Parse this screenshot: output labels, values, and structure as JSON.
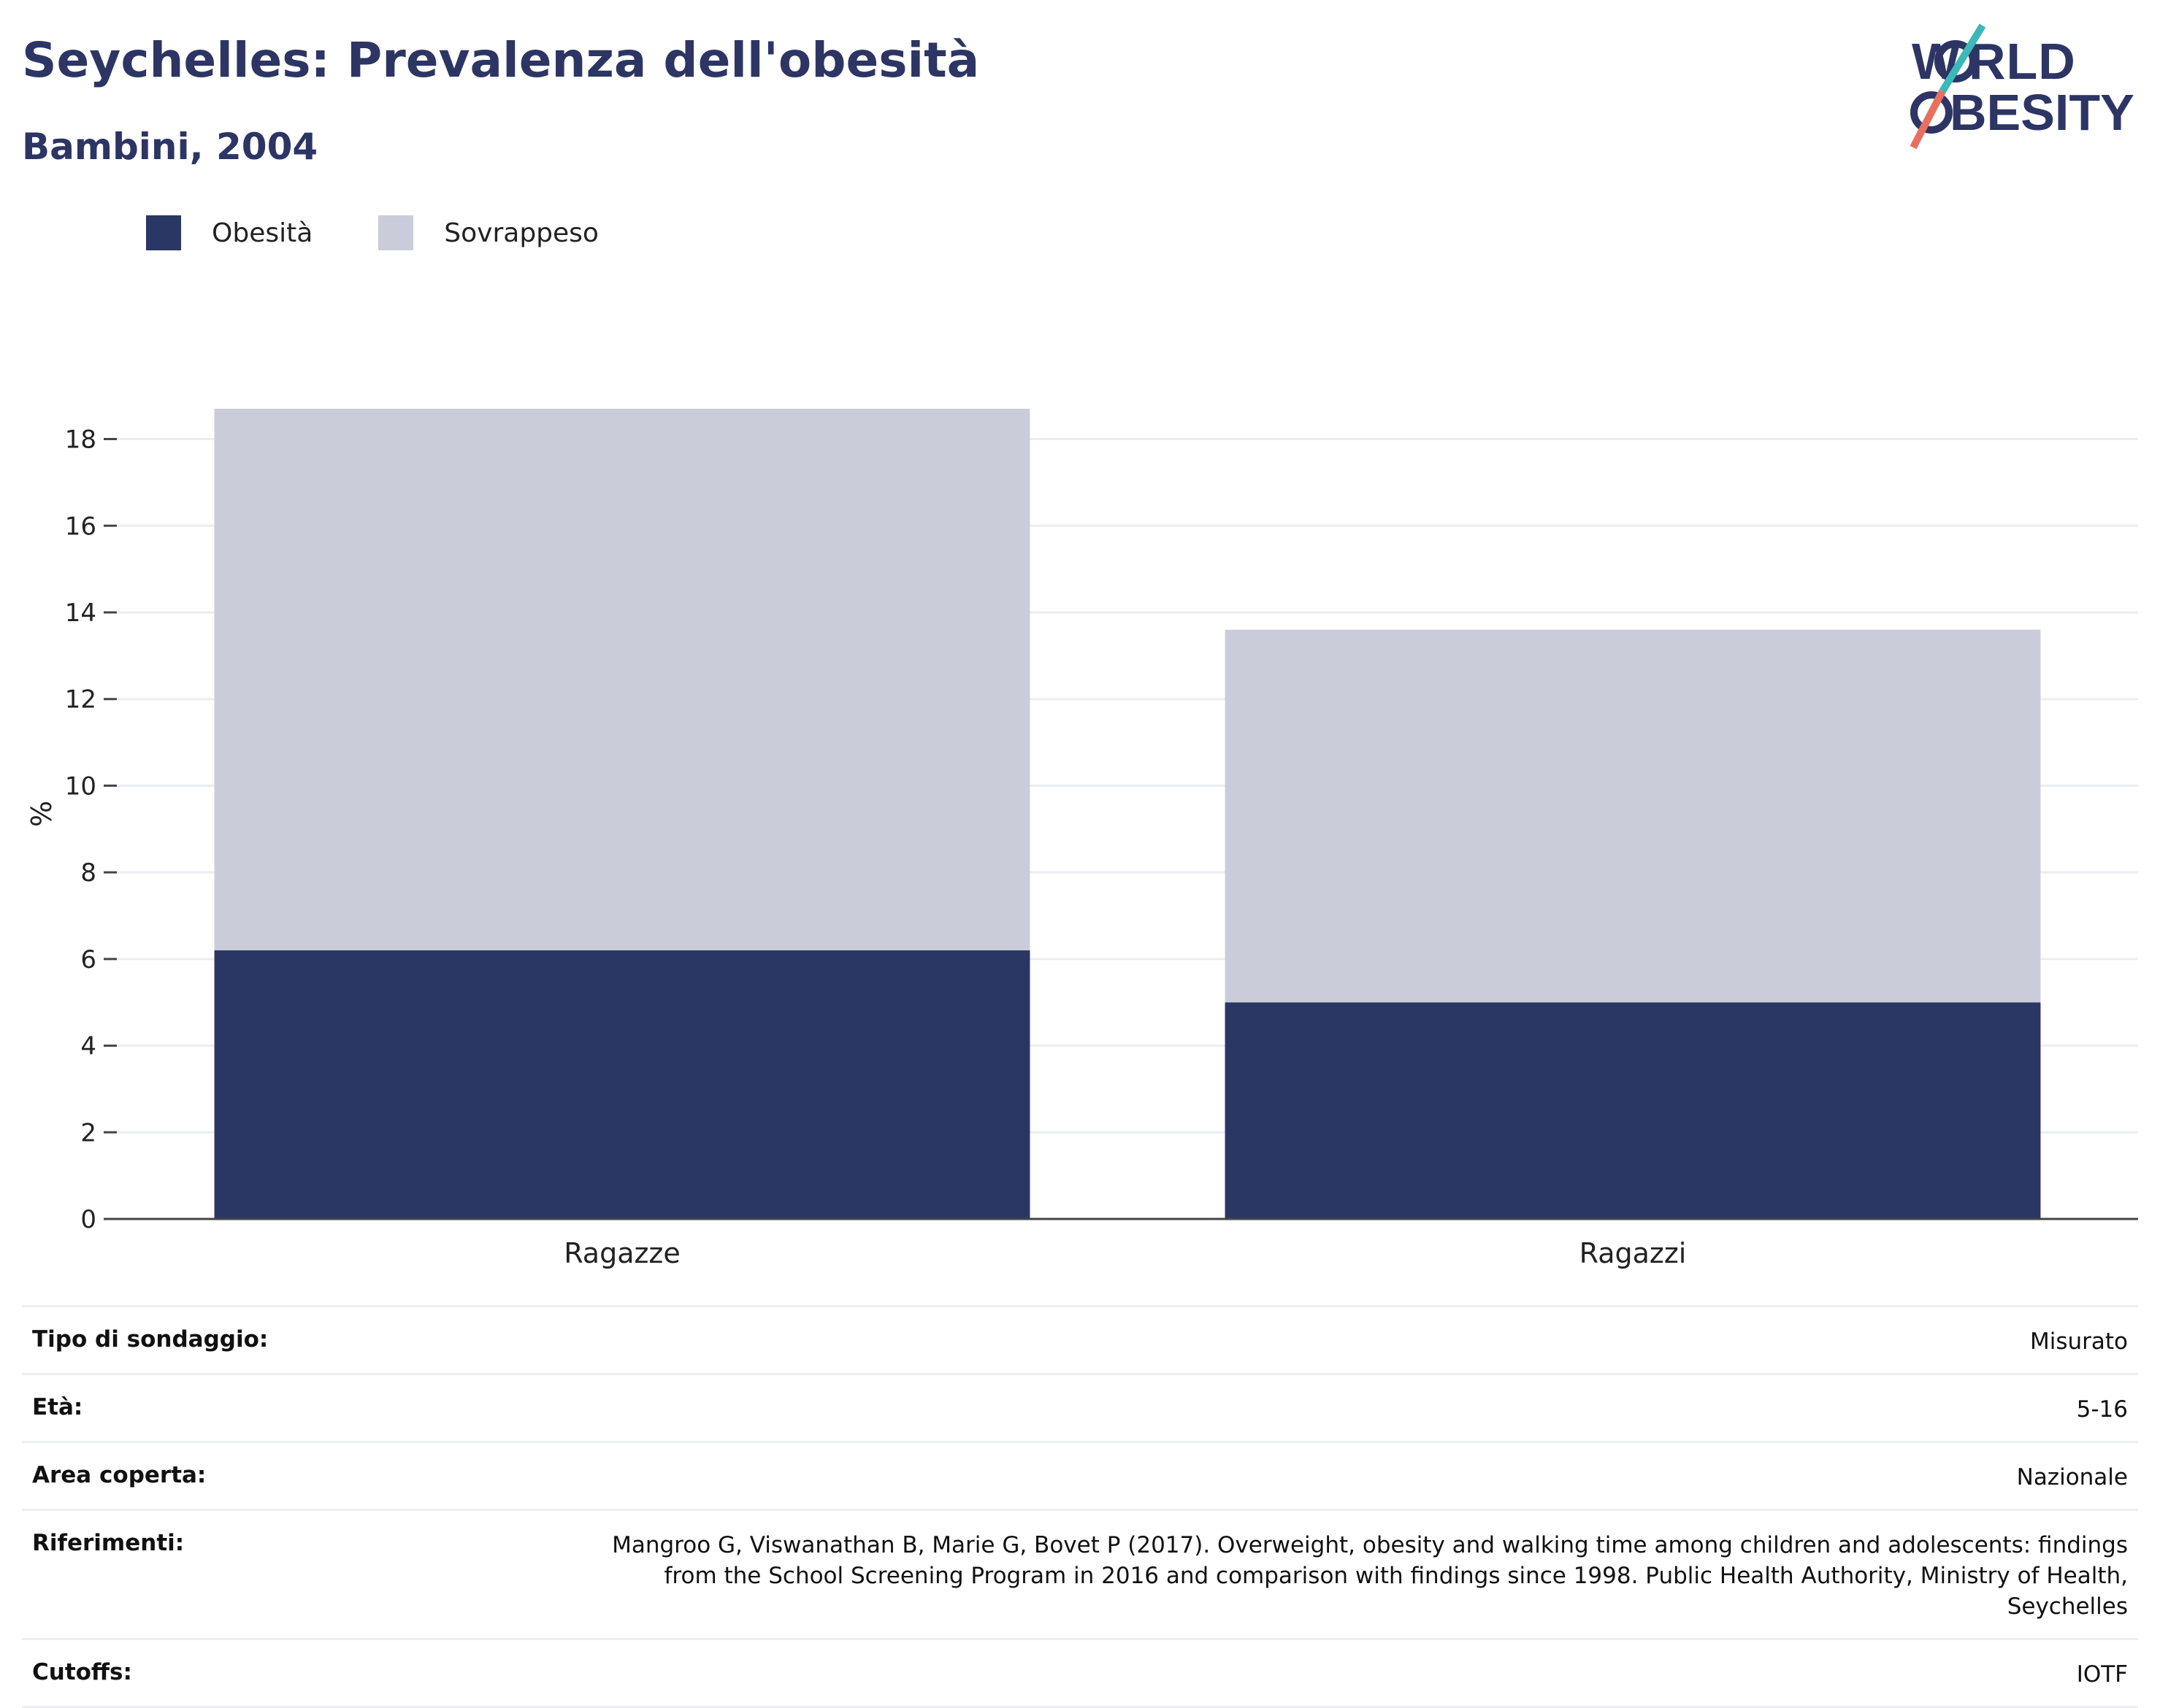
{
  "header": {
    "title": "Seychelles: Prevalenza dell'obesità",
    "subtitle": "Bambini, 2004"
  },
  "logo": {
    "line1": "WORLD",
    "line2": "OBESITY"
  },
  "colors": {
    "obesity": "#2a3764",
    "overweight": "#cacdd9",
    "title": "#2c3563",
    "logo_teal": "#3bb8b8",
    "logo_coral": "#e8705e"
  },
  "legend": [
    {
      "label": "Obesità",
      "color": "#2a3764"
    },
    {
      "label": "Sovrappeso",
      "color": "#cacdd9"
    }
  ],
  "chart_data": {
    "type": "bar",
    "stacked": true,
    "categories": [
      "Ragazze",
      "Ragazzi"
    ],
    "series": [
      {
        "name": "Obesità",
        "values": [
          6.2,
          5.0
        ]
      },
      {
        "name": "Sovrappeso",
        "values": [
          12.5,
          8.6
        ]
      }
    ],
    "ylabel": "%",
    "xlabel": "",
    "ylim": [
      0,
      18.7
    ],
    "yticks": [
      0,
      2,
      4,
      6,
      8,
      10,
      12,
      14,
      16,
      18
    ],
    "grid": true,
    "legend_position": "top-left"
  },
  "info_table": [
    {
      "key": "Tipo di sondaggio:",
      "value": "Misurato"
    },
    {
      "key": "Età:",
      "value": "5-16"
    },
    {
      "key": "Area coperta:",
      "value": "Nazionale"
    },
    {
      "key": "Riferimenti:",
      "value": "Mangroo G, Viswanathan B, Marie G, Bovet P (2017). Overweight, obesity and walking time among children and adolescents: findings from the School Screening Program in 2016 and comparison with findings since 1998. Public Health Authority, Ministry of Health, Seychelles"
    },
    {
      "key": "Cutoffs:",
      "value": "IOTF"
    }
  ]
}
